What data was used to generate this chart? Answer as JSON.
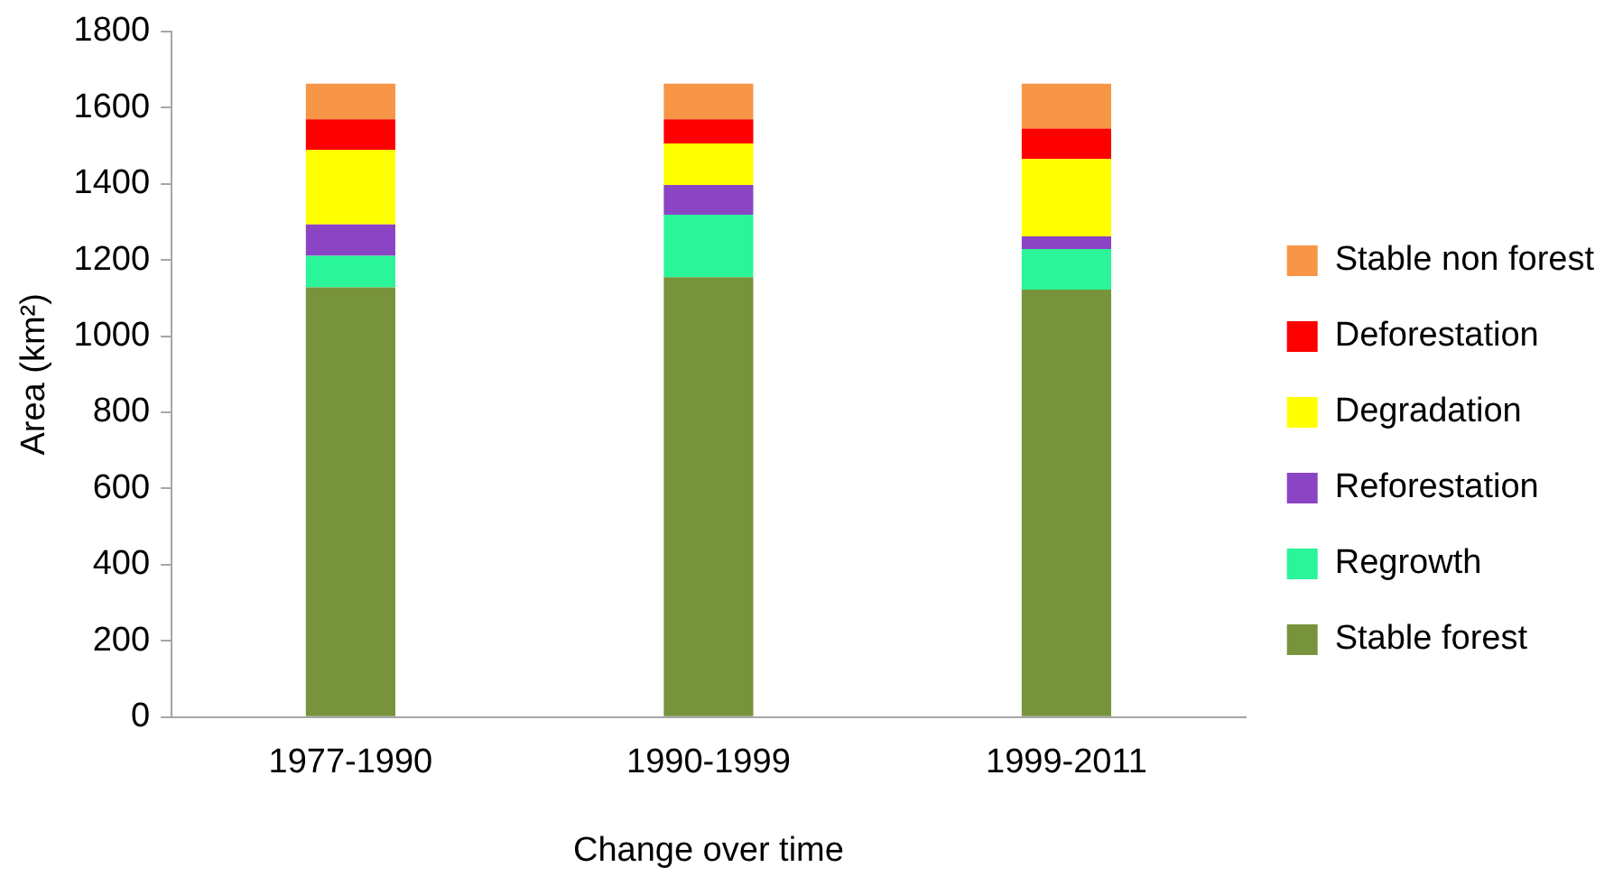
{
  "chart_data": {
    "type": "bar",
    "stacked": true,
    "xlabel": "Change over time",
    "ylabel": "Area (km²)",
    "categories": [
      "1977-1990",
      "1990-1999",
      "1999-2011"
    ],
    "series": [
      {
        "name": "Stable forest",
        "color": "#77933c",
        "values": [
          1128,
          1155,
          1122
        ]
      },
      {
        "name": "Regrowth",
        "color": "#2af598",
        "values": [
          83,
          164,
          107
        ]
      },
      {
        "name": "Reforestation",
        "color": "#8b44c4",
        "values": [
          82,
          78,
          33
        ]
      },
      {
        "name": "Degradation",
        "color": "#ffff00",
        "values": [
          196,
          109,
          203
        ]
      },
      {
        "name": "Deforestation",
        "color": "#ff0000",
        "values": [
          80,
          63,
          80
        ]
      },
      {
        "name": "Stable non forest",
        "color": "#f79646",
        "values": [
          94,
          94,
          118
        ]
      }
    ],
    "ylim": [
      0,
      1800
    ],
    "yticks": [
      0,
      200,
      400,
      600,
      800,
      1000,
      1200,
      1400,
      1600,
      1800
    ],
    "grid": false,
    "legend": "right"
  }
}
